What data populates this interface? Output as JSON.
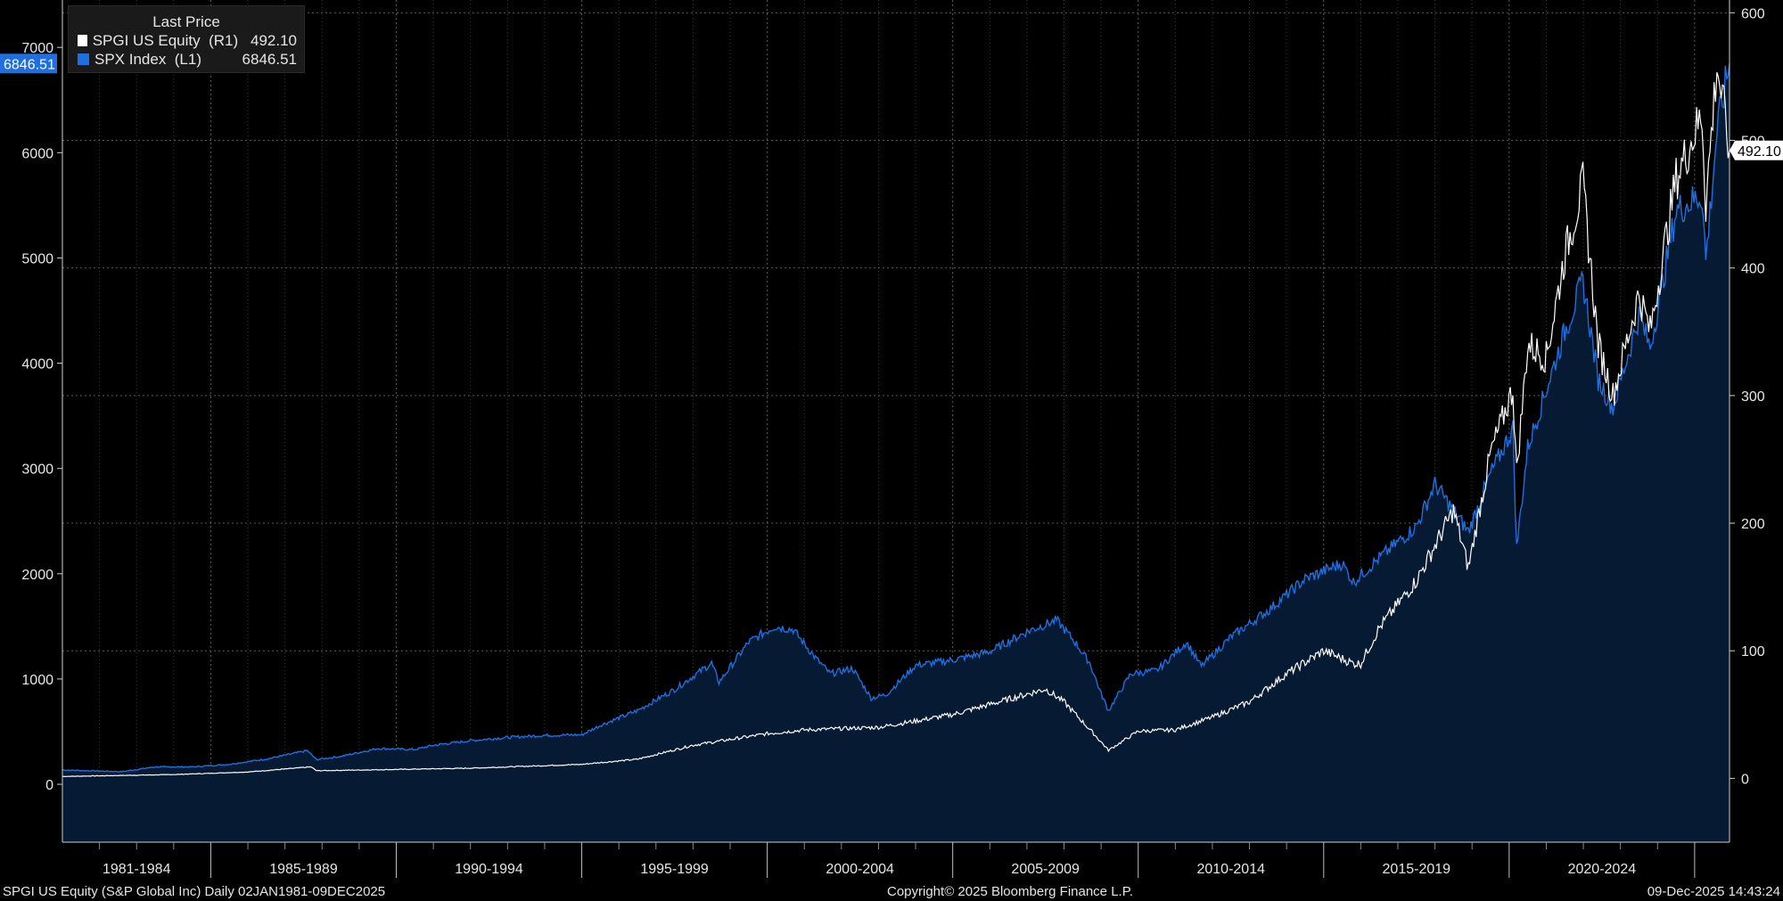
{
  "legend": {
    "header": "Last Price",
    "items": [
      {
        "name": "SPGI US Equity  (R1)",
        "value": "492.10",
        "color": "#ffffff"
      },
      {
        "name": "SPX Index  (L1)",
        "value": "6846.51",
        "color": "#1f6fe0"
      }
    ]
  },
  "tags": {
    "left": "6846.51",
    "right": "492.10"
  },
  "footer": {
    "left": "SPGI US Equity (S&P Global Inc) Daily 02JAN1981-09DEC2025",
    "center": "Copyright© 2025 Bloomberg Finance L.P.",
    "right": "09-Dec-2025 14:43:24"
  },
  "colors": {
    "background": "#000000",
    "area_fill": "#061a33",
    "spx": "#1f6fe0",
    "spgi": "#ffffff",
    "grid": "#5a5a5a"
  },
  "chart_data": {
    "type": "line",
    "x_range": [
      1981.0,
      2025.94
    ],
    "x_tick_labels": [
      "1981-1984",
      "1985-1989",
      "1990-1994",
      "1995-1999",
      "2000-2004",
      "2005-2009",
      "2010-2014",
      "2015-2019",
      "2020-2024"
    ],
    "left_axis": {
      "ticks": [
        0,
        1000,
        2000,
        3000,
        4000,
        5000,
        6000,
        7000
      ],
      "range": [
        -550,
        7450
      ]
    },
    "right_axis": {
      "ticks": [
        0,
        100,
        200,
        300,
        400,
        500,
        600
      ],
      "range": [
        -50,
        610
      ]
    },
    "grid": true,
    "legend_position": "top-left",
    "series": [
      {
        "name": "SPX Index  (L1)",
        "axis": "left",
        "style": "area",
        "points": [
          [
            1981.0,
            136
          ],
          [
            1982.6,
            120
          ],
          [
            1983.5,
            165
          ],
          [
            1984.5,
            165
          ],
          [
            1985.5,
            190
          ],
          [
            1986.5,
            240
          ],
          [
            1987.6,
            320
          ],
          [
            1987.85,
            235
          ],
          [
            1988.5,
            265
          ],
          [
            1989.5,
            340
          ],
          [
            1990.5,
            330
          ],
          [
            1991.0,
            370
          ],
          [
            1992.0,
            415
          ],
          [
            1993.0,
            445
          ],
          [
            1994.0,
            465
          ],
          [
            1995.0,
            470
          ],
          [
            1995.5,
            560
          ],
          [
            1996.5,
            700
          ],
          [
            1997.5,
            900
          ],
          [
            1998.5,
            1150
          ],
          [
            1998.7,
            970
          ],
          [
            1999.5,
            1350
          ],
          [
            2000.2,
            1500
          ],
          [
            2000.7,
            1470
          ],
          [
            2001.3,
            1200
          ],
          [
            2001.7,
            1050
          ],
          [
            2002.3,
            1100
          ],
          [
            2002.8,
            820
          ],
          [
            2003.2,
            850
          ],
          [
            2004.0,
            1130
          ],
          [
            2005.0,
            1180
          ],
          [
            2006.0,
            1260
          ],
          [
            2007.0,
            1450
          ],
          [
            2007.8,
            1560
          ],
          [
            2008.3,
            1350
          ],
          [
            2008.7,
            1150
          ],
          [
            2009.0,
            860
          ],
          [
            2009.2,
            700
          ],
          [
            2009.8,
            1050
          ],
          [
            2010.5,
            1080
          ],
          [
            2011.3,
            1350
          ],
          [
            2011.7,
            1120
          ],
          [
            2012.5,
            1400
          ],
          [
            2013.5,
            1650
          ],
          [
            2014.5,
            1950
          ],
          [
            2015.5,
            2100
          ],
          [
            2015.8,
            1920
          ],
          [
            2016.5,
            2150
          ],
          [
            2017.5,
            2450
          ],
          [
            2018.0,
            2850
          ],
          [
            2018.9,
            2400
          ],
          [
            2019.5,
            2950
          ],
          [
            2020.1,
            3380
          ],
          [
            2020.2,
            2240
          ],
          [
            2020.5,
            3200
          ],
          [
            2021.0,
            3750
          ],
          [
            2021.5,
            4300
          ],
          [
            2021.99,
            4780
          ],
          [
            2022.4,
            3850
          ],
          [
            2022.8,
            3580
          ],
          [
            2023.5,
            4450
          ],
          [
            2023.8,
            4150
          ],
          [
            2024.5,
            5450
          ],
          [
            2025.2,
            5600
          ],
          [
            2025.3,
            4980
          ],
          [
            2025.6,
            6200
          ],
          [
            2025.94,
            6846.51
          ]
        ]
      },
      {
        "name": "SPGI US Equity  (R1)",
        "axis": "right",
        "style": "line",
        "points": [
          [
            1981.0,
            1.5
          ],
          [
            1984.0,
            3
          ],
          [
            1986.0,
            5
          ],
          [
            1987.7,
            9
          ],
          [
            1987.85,
            6
          ],
          [
            1990.0,
            7
          ],
          [
            1992.0,
            8
          ],
          [
            1995.0,
            11
          ],
          [
            1996.5,
            15
          ],
          [
            1998.0,
            26
          ],
          [
            2000.0,
            35
          ],
          [
            2001.0,
            38
          ],
          [
            2003.0,
            40
          ],
          [
            2004.0,
            45
          ],
          [
            2005.0,
            50
          ],
          [
            2006.5,
            62
          ],
          [
            2007.5,
            70
          ],
          [
            2008.0,
            60
          ],
          [
            2008.8,
            35
          ],
          [
            2009.2,
            22
          ],
          [
            2010.0,
            37
          ],
          [
            2011.0,
            38
          ],
          [
            2012.0,
            48
          ],
          [
            2013.0,
            60
          ],
          [
            2014.0,
            82
          ],
          [
            2015.0,
            100
          ],
          [
            2015.8,
            90
          ],
          [
            2016.0,
            90
          ],
          [
            2016.5,
            118
          ],
          [
            2017.5,
            155
          ],
          [
            2018.5,
            210
          ],
          [
            2018.9,
            165
          ],
          [
            2019.5,
            255
          ],
          [
            2020.1,
            305
          ],
          [
            2020.2,
            240
          ],
          [
            2020.5,
            340
          ],
          [
            2021.0,
            330
          ],
          [
            2021.5,
            410
          ],
          [
            2021.99,
            465
          ],
          [
            2022.4,
            340
          ],
          [
            2022.8,
            300
          ],
          [
            2023.5,
            380
          ],
          [
            2023.8,
            350
          ],
          [
            2024.5,
            470
          ],
          [
            2025.2,
            520
          ],
          [
            2025.3,
            450
          ],
          [
            2025.6,
            560
          ],
          [
            2025.94,
            492.1
          ]
        ]
      }
    ]
  }
}
